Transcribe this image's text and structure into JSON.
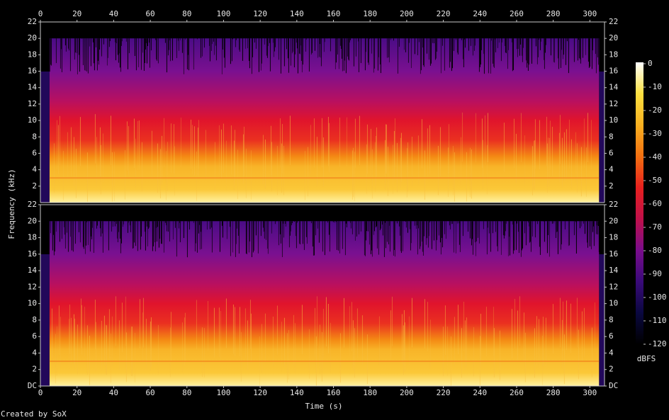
{
  "chart_data": {
    "type": "spectrogram",
    "x_label": "Time (s)",
    "y_label": "Frequency (kHz)",
    "xlim": [
      0,
      308
    ],
    "xticks": [
      0,
      20,
      40,
      60,
      80,
      100,
      120,
      140,
      160,
      180,
      200,
      220,
      240,
      260,
      280,
      300
    ],
    "channels": [
      {
        "ylim": [
          0,
          22
        ],
        "yticks": [
          2,
          4,
          6,
          8,
          10,
          12,
          14,
          16,
          18,
          20,
          22
        ]
      },
      {
        "ylim": [
          0,
          22
        ],
        "yticks": [
          {
            "value": 0,
            "label": "DC"
          },
          2,
          4,
          6,
          8,
          10,
          12,
          14,
          16,
          18,
          20,
          22
        ]
      }
    ],
    "colorbar": {
      "label": "dBFS",
      "lim": [
        -120,
        0
      ],
      "ticks": [
        0,
        -10,
        -20,
        -30,
        -40,
        -50,
        -60,
        -70,
        -80,
        -90,
        -100,
        -110,
        -120
      ]
    },
    "colormap": [
      "#000000",
      "#0a0840",
      "#3a0a7a",
      "#7a0c8c",
      "#c0104a",
      "#e8201e",
      "#f47010",
      "#f8b020",
      "#fce040",
      "#ffffff"
    ]
  },
  "footer": "Created by SoX"
}
